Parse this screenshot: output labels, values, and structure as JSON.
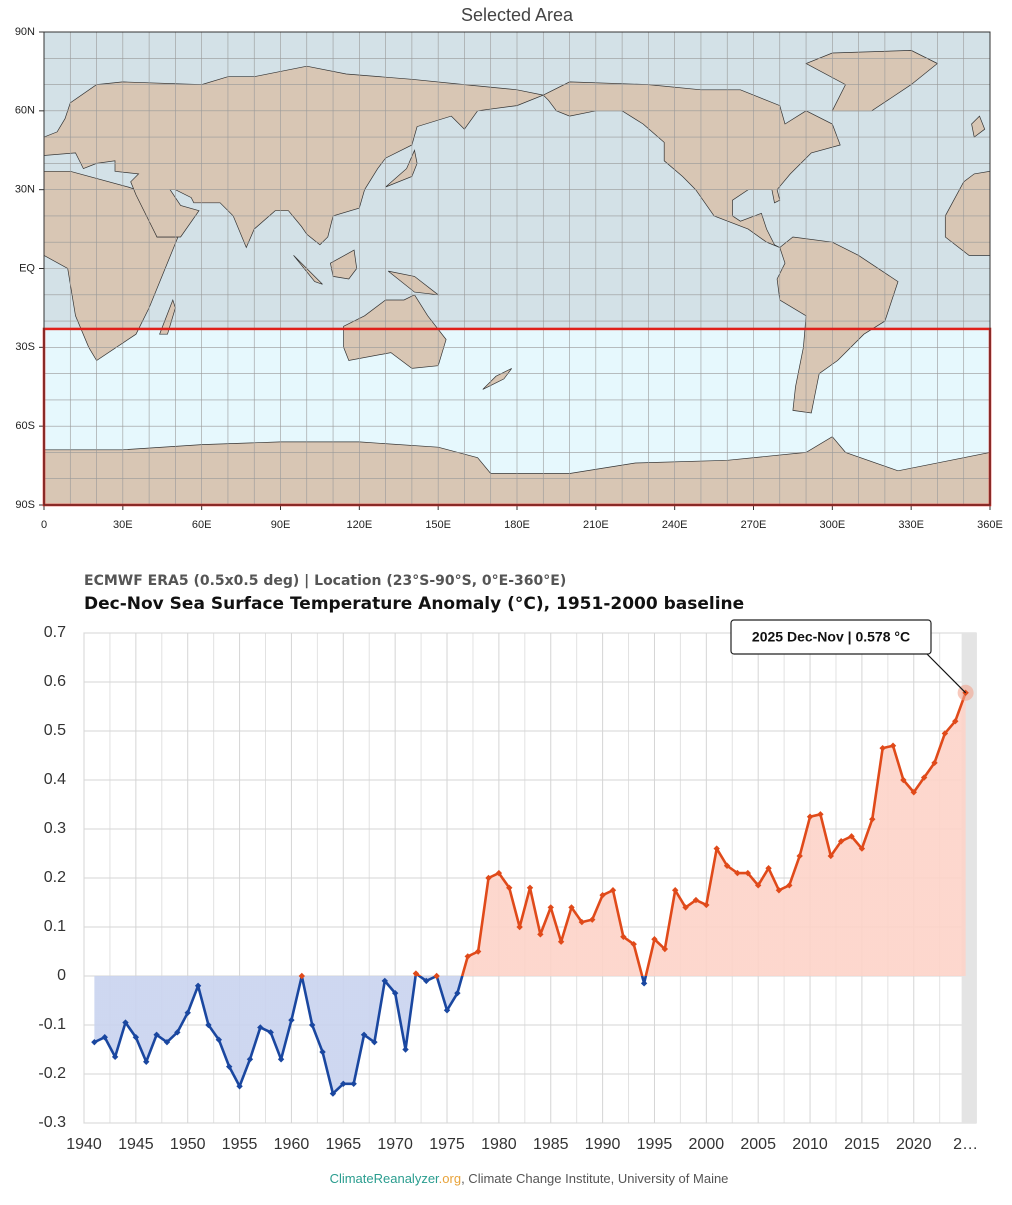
{
  "chart_data": [
    {
      "type": "map",
      "title": "Selected Area",
      "xlim": [
        0,
        360
      ],
      "ylim": [
        -90,
        90
      ],
      "xticks": [
        0,
        {
          "value": 30,
          "label": "30E"
        },
        {
          "value": 60,
          "label": "60E"
        },
        {
          "value": 90,
          "label": "90E"
        },
        {
          "value": 120,
          "label": "120E"
        },
        {
          "value": 150,
          "label": "150E"
        },
        {
          "value": 180,
          "label": "180E"
        },
        {
          "value": 210,
          "label": "210E"
        },
        {
          "value": 240,
          "label": "240E"
        },
        {
          "value": 270,
          "label": "270E"
        },
        {
          "value": 300,
          "label": "300E"
        },
        {
          "value": 330,
          "label": "330E"
        },
        {
          "value": 360,
          "label": "360E"
        }
      ],
      "yticks": [
        {
          "value": 90,
          "label": "90N"
        },
        {
          "value": 60,
          "label": "60N"
        },
        {
          "value": 30,
          "label": "30N"
        },
        {
          "value": 0,
          "label": "EQ"
        },
        {
          "value": -30,
          "label": "30S"
        },
        {
          "value": -60,
          "label": "60S"
        },
        {
          "value": -90,
          "label": "90S"
        }
      ],
      "selection": {
        "xlim": [
          0,
          360
        ],
        "ylim": [
          -90,
          -23
        ],
        "color": "#e0201b"
      }
    },
    {
      "type": "line",
      "subtitle": "ECMWF ERA5 (0.5x0.5 deg) | Location (23°S-90°S, 0°E-360°E)",
      "title": "Dec-Nov Sea Surface Temperature Anomaly (°C), 1951-2000 baseline",
      "annotation": "2025 Dec-Nov | 0.578 °C",
      "x": [
        1941,
        1942,
        1943,
        1944,
        1945,
        1946,
        1947,
        1948,
        1949,
        1950,
        1951,
        1952,
        1953,
        1954,
        1955,
        1956,
        1957,
        1958,
        1959,
        1960,
        1961,
        1962,
        1963,
        1964,
        1965,
        1966,
        1967,
        1968,
        1969,
        1970,
        1971,
        1972,
        1973,
        1974,
        1975,
        1976,
        1977,
        1978,
        1979,
        1980,
        1981,
        1982,
        1983,
        1984,
        1985,
        1986,
        1987,
        1988,
        1989,
        1990,
        1991,
        1992,
        1993,
        1994,
        1995,
        1996,
        1997,
        1998,
        1999,
        2000,
        2001,
        2002,
        2003,
        2004,
        2005,
        2006,
        2007,
        2008,
        2009,
        2010,
        2011,
        2012,
        2013,
        2014,
        2015,
        2016,
        2017,
        2018,
        2019,
        2020,
        2021,
        2022,
        2023,
        2024,
        2025
      ],
      "values": [
        -0.135,
        -0.125,
        -0.165,
        -0.095,
        -0.125,
        -0.175,
        -0.12,
        -0.135,
        -0.115,
        -0.075,
        -0.02,
        -0.1,
        -0.13,
        -0.185,
        -0.225,
        -0.17,
        -0.105,
        -0.115,
        -0.17,
        -0.09,
        0.0,
        -0.1,
        -0.155,
        -0.24,
        -0.22,
        -0.22,
        -0.12,
        -0.135,
        -0.01,
        -0.035,
        -0.15,
        0.005,
        -0.01,
        0.0,
        -0.07,
        -0.035,
        0.04,
        0.05,
        0.2,
        0.21,
        0.18,
        0.1,
        0.18,
        0.085,
        0.14,
        0.07,
        0.14,
        0.11,
        0.115,
        0.165,
        0.175,
        0.08,
        0.065,
        -0.015,
        0.075,
        0.055,
        0.175,
        0.14,
        0.155,
        0.145,
        0.26,
        0.225,
        0.21,
        0.21,
        0.185,
        0.22,
        0.175,
        0.185,
        0.245,
        0.325,
        0.33,
        0.245,
        0.275,
        0.285,
        0.26,
        0.32,
        0.465,
        0.47,
        0.4,
        0.375,
        0.405,
        0.435,
        0.495,
        0.52,
        0.578
      ],
      "positive_color": "#e04a1a",
      "negative_color": "#1a47a0",
      "positive_fill": "#fdd3c8",
      "negative_fill": "#c9d3ef",
      "xlim": [
        1940,
        2026
      ],
      "xticks": [
        1940,
        1945,
        1950,
        1955,
        1960,
        1965,
        1970,
        1975,
        1980,
        1985,
        1990,
        1995,
        2000,
        2005,
        2010,
        2015,
        2020,
        {
          "value": 2025,
          "label": "2…"
        }
      ],
      "ylim": [
        -0.3,
        0.7
      ],
      "yticks": [
        -0.3,
        -0.2,
        -0.1,
        0,
        0.1,
        0.2,
        0.3,
        0.4,
        0.5,
        0.6,
        0.7
      ],
      "grid": true
    }
  ],
  "footer": {
    "site": "ClimateReanalyzer",
    "tld": ".org",
    "rest": ", Climate Change Institute, University of Maine"
  }
}
